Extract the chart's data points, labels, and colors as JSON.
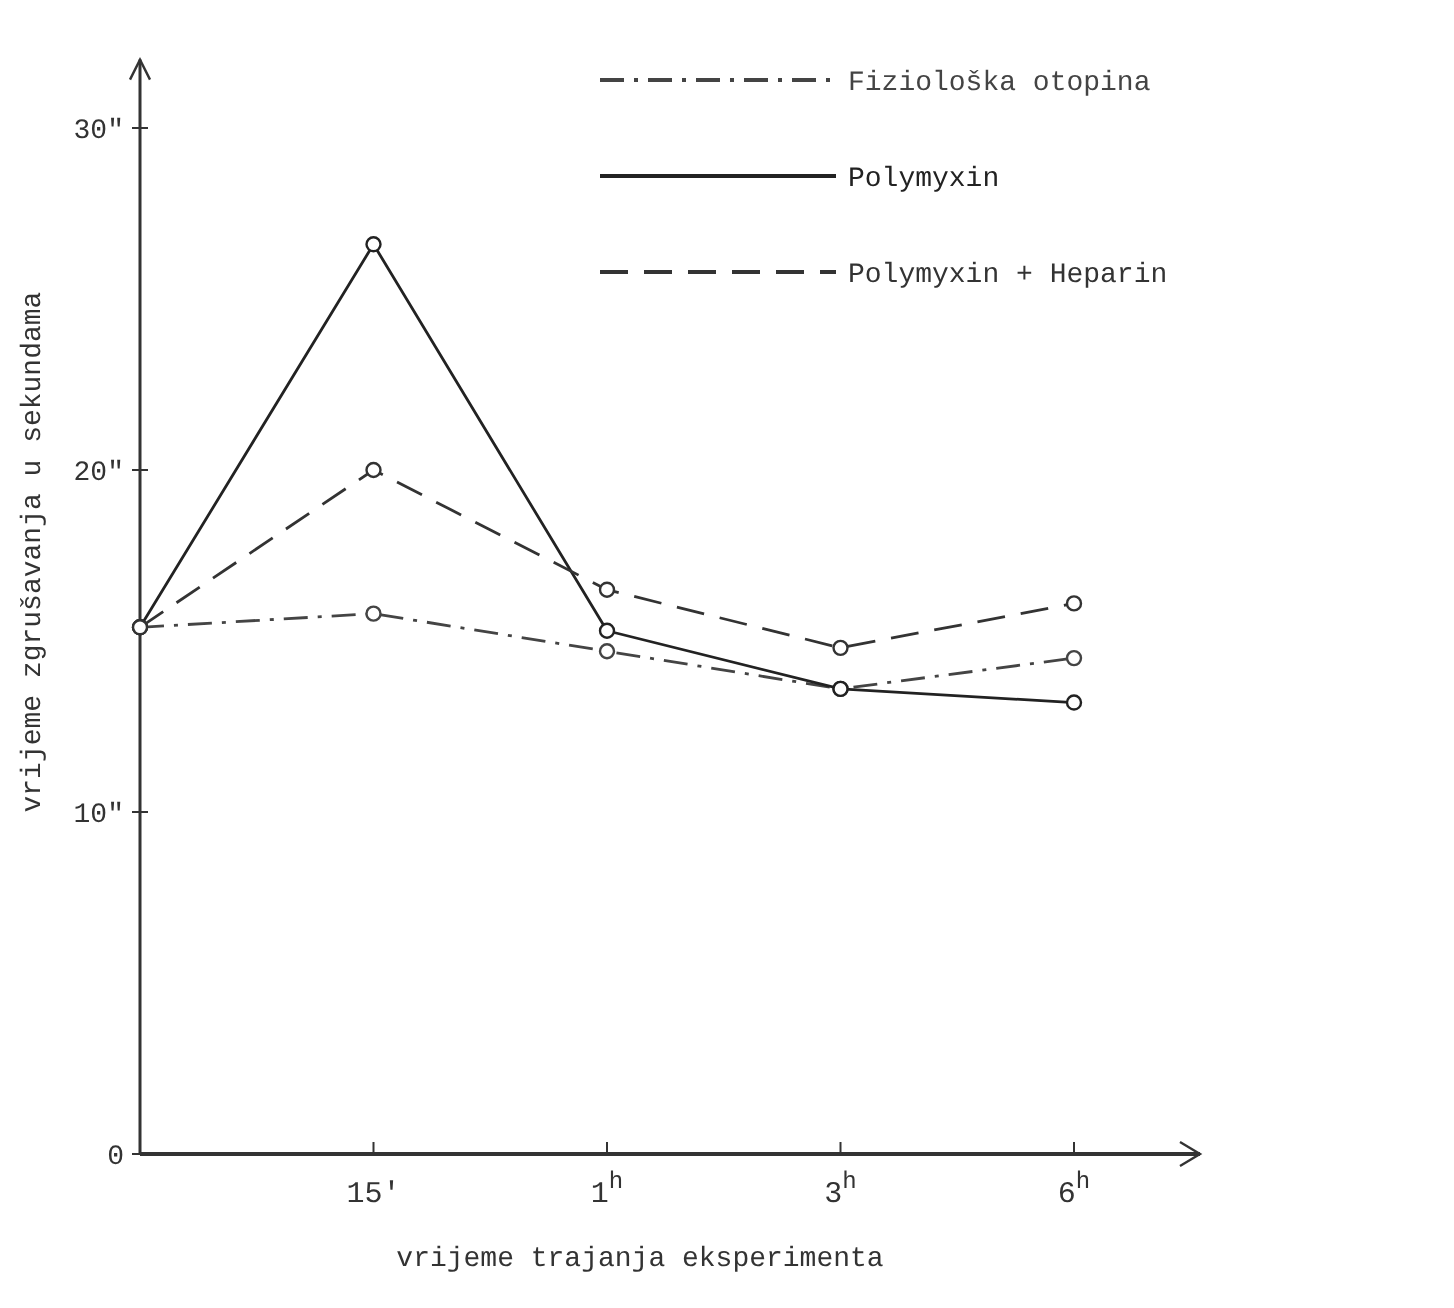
{
  "chart_data": {
    "type": "line",
    "xlabel": "vrijeme trajanja eksperimenta",
    "ylabel": "vrijeme zgrušavanja u sekundama",
    "categories": [
      null,
      "15'",
      "1$^{h}$",
      "3$^{h}$",
      "6$^{h}$"
    ],
    "ylim": [
      0,
      32
    ],
    "yticks": [
      0,
      {
        "value": 10,
        "label": "10\""
      },
      {
        "value": 20,
        "label": "20\""
      },
      {
        "value": 30,
        "label": "30\""
      }
    ],
    "grid": false,
    "legend": "top right",
    "marker": "circle",
    "series": [
      {
        "name": "Fiziološka otopina",
        "color": "#444444",
        "line_style": "dashdot",
        "values": [
          15.4,
          15.8,
          14.7,
          13.6,
          14.5
        ]
      },
      {
        "name": "Polymyxin",
        "color": "#222222",
        "line_style": "solid",
        "values": [
          15.4,
          26.6,
          15.3,
          13.6,
          13.2
        ]
      },
      {
        "name": "Polymyxin + Heparin",
        "color": "#333333",
        "line_style": "dashed",
        "values": [
          15.4,
          20.0,
          16.5,
          14.8,
          16.1
        ]
      }
    ]
  }
}
